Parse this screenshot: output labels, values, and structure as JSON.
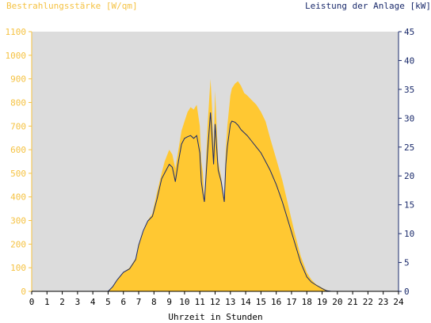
{
  "chart_data": {
    "type": "area",
    "left_axis_title": "Bestrahlungsstärke [W/qm]",
    "right_axis_title": "Leistung der Anlage [kW]",
    "xlabel": "Uhrzeit in Stunden",
    "xlim": [
      0,
      24
    ],
    "ylim_left": [
      0,
      1100
    ],
    "ylim_right": [
      0,
      45
    ],
    "x_ticks": [
      0,
      1,
      2,
      3,
      4,
      5,
      6,
      7,
      8,
      9,
      10,
      11,
      12,
      13,
      14,
      15,
      16,
      17,
      18,
      19,
      20,
      21,
      22,
      23,
      24
    ],
    "left_ticks": [
      0,
      100,
      200,
      300,
      400,
      500,
      600,
      700,
      800,
      900,
      1000,
      1100
    ],
    "right_ticks": [
      0,
      5,
      10,
      15,
      20,
      25,
      30,
      35,
      40,
      45
    ],
    "colors": {
      "plot_background": "#dcdcdc",
      "irradiance_fill": "#ffc832",
      "power_line": "#1a2a6b",
      "left_axis": "#f5c242",
      "right_axis": "#1a2a6b"
    },
    "series": [
      {
        "name": "Bestrahlungsstärke [W/qm]",
        "axis": "left",
        "x": [
          0,
          5.0,
          5.3,
          5.6,
          6.0,
          6.4,
          6.8,
          7.0,
          7.3,
          7.6,
          7.9,
          8.2,
          8.5,
          8.7,
          9.0,
          9.2,
          9.4,
          9.6,
          9.8,
          10.0,
          10.2,
          10.4,
          10.6,
          10.8,
          11.0,
          11.1,
          11.2,
          11.3,
          11.5,
          11.7,
          11.8,
          11.9,
          12.0,
          12.2,
          12.4,
          12.6,
          12.7,
          12.8,
          13.0,
          13.1,
          13.3,
          13.5,
          13.7,
          13.9,
          14.1,
          14.4,
          14.7,
          15.0,
          15.3,
          15.6,
          16.0,
          16.4,
          16.8,
          17.2,
          17.6,
          18.0,
          18.3,
          18.6,
          19.0,
          19.3,
          19.6,
          20.0,
          24
        ],
        "y": [
          0,
          0,
          20,
          50,
          80,
          100,
          140,
          200,
          250,
          300,
          330,
          420,
          500,
          550,
          600,
          580,
          520,
          600,
          680,
          720,
          760,
          780,
          770,
          790,
          700,
          550,
          500,
          380,
          700,
          900,
          780,
          600,
          850,
          550,
          480,
          380,
          600,
          700,
          830,
          860,
          880,
          890,
          870,
          840,
          830,
          810,
          790,
          760,
          720,
          650,
          560,
          470,
          360,
          250,
          150,
          80,
          50,
          30,
          15,
          5,
          0,
          0,
          0
        ]
      },
      {
        "name": "Leistung der Anlage [kW]",
        "axis": "right",
        "x": [
          0,
          5.0,
          5.3,
          5.6,
          6.0,
          6.4,
          6.8,
          7.0,
          7.3,
          7.6,
          7.9,
          8.2,
          8.5,
          8.7,
          9.0,
          9.2,
          9.4,
          9.6,
          9.8,
          10.0,
          10.2,
          10.4,
          10.6,
          10.8,
          11.0,
          11.1,
          11.2,
          11.3,
          11.5,
          11.7,
          11.8,
          11.9,
          12.0,
          12.2,
          12.4,
          12.6,
          12.7,
          12.8,
          13.0,
          13.1,
          13.3,
          13.5,
          13.7,
          13.9,
          14.1,
          14.4,
          14.7,
          15.0,
          15.3,
          15.6,
          16.0,
          16.4,
          16.8,
          17.2,
          17.6,
          18.0,
          18.3,
          18.6,
          19.0,
          19.3,
          19.6,
          20.0,
          24
        ],
        "y": [
          0,
          0,
          0.8,
          2.0,
          3.3,
          3.9,
          5.5,
          8.0,
          10.5,
          12.2,
          13.0,
          16.0,
          19.5,
          20.5,
          22.0,
          21.5,
          19.0,
          22.5,
          25.5,
          26.5,
          26.8,
          27.0,
          26.5,
          27.0,
          24.0,
          19.0,
          17.0,
          15.5,
          24.0,
          31.0,
          27.0,
          22.0,
          29.0,
          21.0,
          19.0,
          15.5,
          22.0,
          25.0,
          29.0,
          29.5,
          29.3,
          28.8,
          28.0,
          27.5,
          27.0,
          26.0,
          25.0,
          24.0,
          22.5,
          21.0,
          18.5,
          15.5,
          12.0,
          8.5,
          5.0,
          2.5,
          1.6,
          1.1,
          0.5,
          0.1,
          0,
          0,
          0
        ]
      }
    ]
  }
}
